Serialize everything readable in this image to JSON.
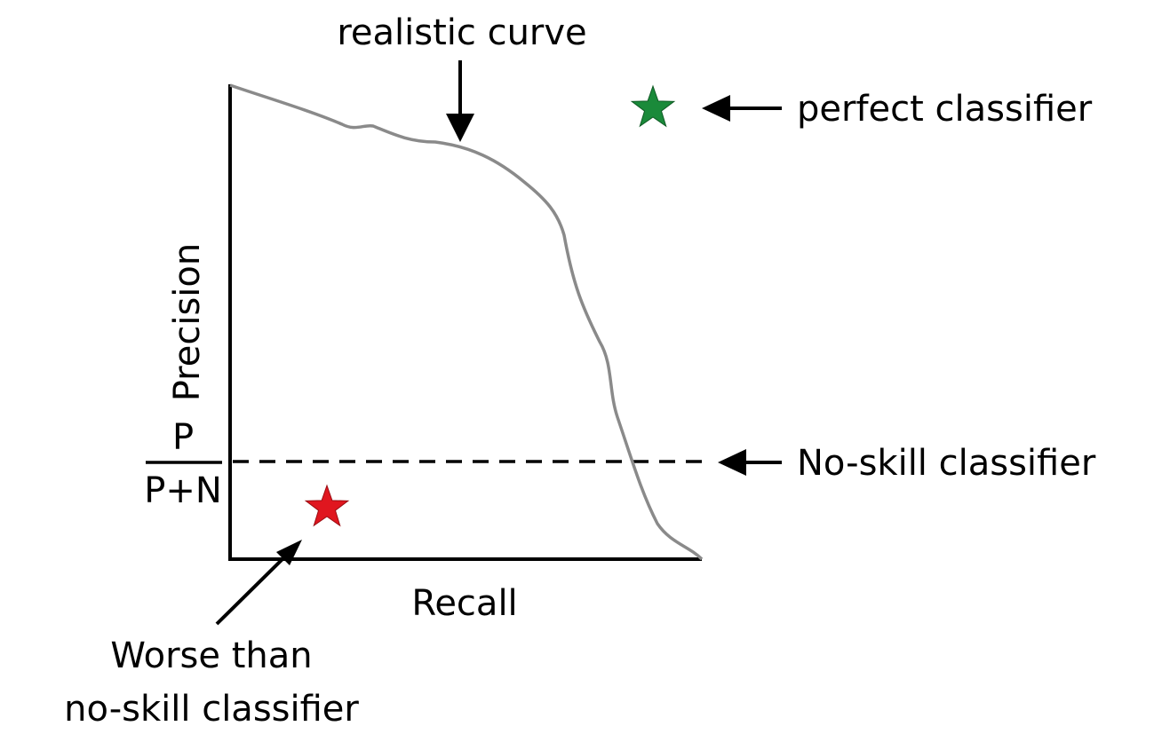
{
  "axes": {
    "xlabel": "Recall",
    "ylabel": "Precision",
    "baseline_fraction": {
      "numerator": "P",
      "denominator": "P+N"
    }
  },
  "annotations": {
    "realistic_curve": "realistic curve",
    "perfect_classifier": "perfect classifier",
    "no_skill_classifier": "No-skill classifier",
    "worse_than_line1": "Worse than",
    "worse_than_line2": "no-skill classifier"
  },
  "markers": {
    "perfect": {
      "shape": "star",
      "color": "#1a8a3a"
    },
    "worse": {
      "shape": "star",
      "color": "#e0161f"
    }
  },
  "colors": {
    "axis": "#000000",
    "curve": "#8a8a8a",
    "text": "#000000"
  }
}
